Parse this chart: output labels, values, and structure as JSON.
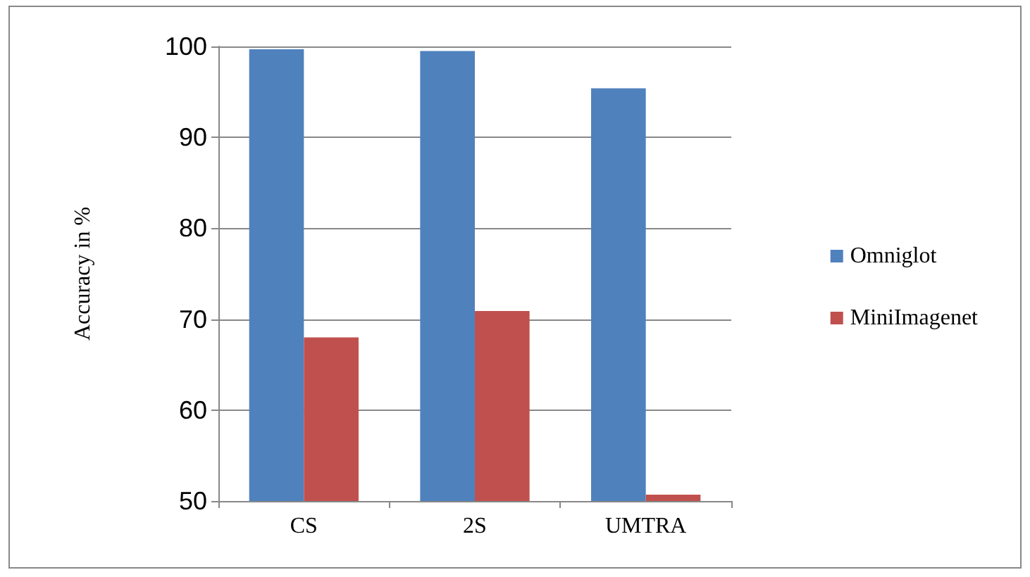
{
  "chart_data": {
    "type": "bar",
    "ylabel": "Accuracy in %",
    "categories": [
      "CS",
      "2S",
      "UMTRA"
    ],
    "series": [
      {
        "name": "Omniglot",
        "color": "#4f81bd",
        "values": [
          99.7,
          99.5,
          95.4
        ]
      },
      {
        "name": "MiniImagenet",
        "color": "#c0504d",
        "values": [
          68,
          70.9,
          50.7
        ]
      }
    ],
    "ylim": [
      50,
      100
    ],
    "yticks": [
      50,
      60,
      70,
      80,
      90,
      100
    ],
    "grid": "y",
    "legend": "right"
  }
}
